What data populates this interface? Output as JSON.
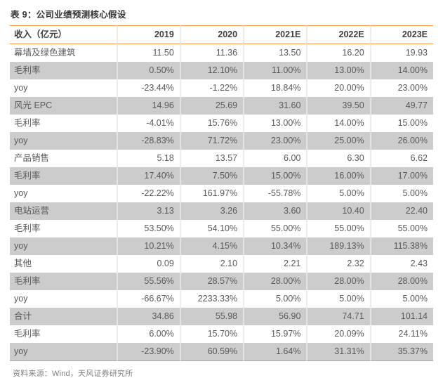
{
  "title": "表 9：公司业绩预测核心假设",
  "source": "资料来源：Wind，天风证券研究所",
  "colors": {
    "accent_line": "#F79646",
    "band_gray": "#CCCCCC",
    "text_gray": "#595959",
    "source_gray": "#7F7F7F"
  },
  "table": {
    "header": [
      "收入（亿元）",
      "2019",
      "2020",
      "2021E",
      "2022E",
      "2023E"
    ],
    "rows": [
      {
        "label": "幕墙及绿色建筑",
        "values": [
          "11.50",
          "11.36",
          "13.50",
          "16.20",
          "19.93"
        ]
      },
      {
        "label": "毛利率",
        "values": [
          "0.50%",
          "12.10%",
          "11.00%",
          "13.00%",
          "14.00%"
        ]
      },
      {
        "label": "yoy",
        "values": [
          "-23.44%",
          "-1.22%",
          "18.84%",
          "20.00%",
          "23.00%"
        ]
      },
      {
        "label": "风光 EPC",
        "values": [
          "14.96",
          "25.69",
          "31.60",
          "39.50",
          "49.77"
        ]
      },
      {
        "label": "毛利率",
        "values": [
          "-4.01%",
          "15.76%",
          "13.00%",
          "14.00%",
          "15.00%"
        ]
      },
      {
        "label": "yoy",
        "values": [
          "-28.83%",
          "71.72%",
          "23.00%",
          "25.00%",
          "26.00%"
        ]
      },
      {
        "label": "产品销售",
        "values": [
          "5.18",
          "13.57",
          "6.00",
          "6.30",
          "6.62"
        ]
      },
      {
        "label": "毛利率",
        "values": [
          "17.40%",
          "7.50%",
          "15.00%",
          "16.00%",
          "17.00%"
        ]
      },
      {
        "label": "yoy",
        "values": [
          "-22.22%",
          "161.97%",
          "-55.78%",
          "5.00%",
          "5.00%"
        ]
      },
      {
        "label": "电站运营",
        "values": [
          "3.13",
          "3.26",
          "3.60",
          "10.40",
          "22.40"
        ]
      },
      {
        "label": "毛利率",
        "values": [
          "53.50%",
          "54.10%",
          "55.00%",
          "55.00%",
          "55.00%"
        ]
      },
      {
        "label": "yoy",
        "values": [
          "10.21%",
          "4.15%",
          "10.34%",
          "189.13%",
          "115.38%"
        ]
      },
      {
        "label": "其他",
        "values": [
          "0.09",
          "2.10",
          "2.21",
          "2.32",
          "2.43"
        ]
      },
      {
        "label": "毛利率",
        "values": [
          "55.56%",
          "28.57%",
          "28.00%",
          "28.00%",
          "28.00%"
        ]
      },
      {
        "label": "yoy",
        "values": [
          "-66.67%",
          "2233.33%",
          "5.00%",
          "5.00%",
          "5.00%"
        ]
      },
      {
        "label": "合计",
        "values": [
          "34.86",
          "55.98",
          "56.90",
          "74.71",
          "101.14"
        ]
      },
      {
        "label": "毛利率",
        "values": [
          "6.00%",
          "15.70%",
          "15.97%",
          "20.09%",
          "24.11%"
        ]
      },
      {
        "label": "yoy",
        "values": [
          "-23.90%",
          "60.59%",
          "1.64%",
          "31.31%",
          "35.37%"
        ]
      }
    ]
  }
}
